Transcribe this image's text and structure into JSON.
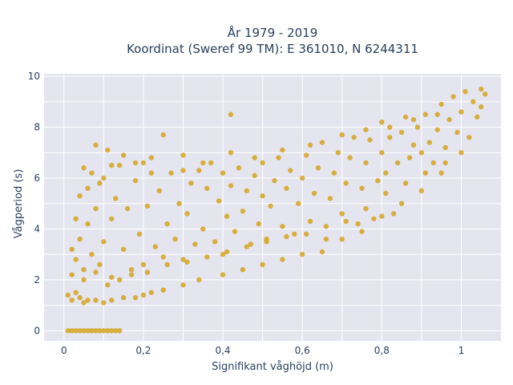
{
  "chart_data": {
    "type": "scatter",
    "title": "År 1979 - 2019",
    "subtitle": "Koordinat (Sweref 99 TM): E 361010, N 6244311",
    "xlabel": "Signifikant våghöjd (m)",
    "ylabel": "Vågperiod (s)",
    "xlim": [
      -0.05,
      1.1
    ],
    "ylim": [
      -0.4,
      10.1
    ],
    "x_ticks": [
      0,
      0.2,
      0.4,
      0.6,
      0.8,
      1
    ],
    "x_tick_labels": [
      "0",
      "0,2",
      "0,4",
      "0,6",
      "0,8",
      "1"
    ],
    "y_ticks": [
      0,
      2,
      4,
      6,
      8,
      10
    ],
    "y_tick_labels": [
      "0",
      "2",
      "4",
      "6",
      "8",
      "10"
    ],
    "grid": true,
    "marker_color": "#d4a520",
    "plot_background": "#e5e5f0",
    "series": [
      {
        "name": "",
        "points": [
          [
            0.01,
            0
          ],
          [
            0.02,
            0
          ],
          [
            0.03,
            0
          ],
          [
            0.04,
            0
          ],
          [
            0.05,
            0
          ],
          [
            0.06,
            0
          ],
          [
            0.07,
            0
          ],
          [
            0.08,
            0
          ],
          [
            0.09,
            0
          ],
          [
            0.1,
            0
          ],
          [
            0.11,
            0
          ],
          [
            0.12,
            0
          ],
          [
            0.13,
            0
          ],
          [
            0.14,
            0
          ],
          [
            0.01,
            1.4
          ],
          [
            0.02,
            1.2
          ],
          [
            0.03,
            1.5
          ],
          [
            0.04,
            1.3
          ],
          [
            0.05,
            1.1
          ],
          [
            0.06,
            1.2
          ],
          [
            0.08,
            1.2
          ],
          [
            0.1,
            1.1
          ],
          [
            0.12,
            1.2
          ],
          [
            0.15,
            1.3
          ],
          [
            0.18,
            1.3
          ],
          [
            0.2,
            1.4
          ],
          [
            0.22,
            1.5
          ],
          [
            0.25,
            1.6
          ],
          [
            0.3,
            1.8
          ],
          [
            0.34,
            2.0
          ],
          [
            0.4,
            2.2
          ],
          [
            0.45,
            2.4
          ],
          [
            0.5,
            2.6
          ],
          [
            0.55,
            2.8
          ],
          [
            0.6,
            3.0
          ],
          [
            0.65,
            3.1
          ],
          [
            0.7,
            3.6
          ],
          [
            0.75,
            3.9
          ],
          [
            0.8,
            4.5
          ],
          [
            0.85,
            5.0
          ],
          [
            0.9,
            5.5
          ],
          [
            0.95,
            6.2
          ],
          [
            1.0,
            7.0
          ],
          [
            1.05,
            8.8
          ],
          [
            0.02,
            2.2
          ],
          [
            0.02,
            3.2
          ],
          [
            0.03,
            4.4
          ],
          [
            0.03,
            2.8
          ],
          [
            0.04,
            5.3
          ],
          [
            0.04,
            3.6
          ],
          [
            0.05,
            6.4
          ],
          [
            0.05,
            2.4
          ],
          [
            0.06,
            4.2
          ],
          [
            0.06,
            5.6
          ],
          [
            0.07,
            3.0
          ],
          [
            0.07,
            6.2
          ],
          [
            0.08,
            7.3
          ],
          [
            0.08,
            4.8
          ],
          [
            0.09,
            2.6
          ],
          [
            0.09,
            5.8
          ],
          [
            0.1,
            3.5
          ],
          [
            0.1,
            6.0
          ],
          [
            0.11,
            7.1
          ],
          [
            0.12,
            4.4
          ],
          [
            0.12,
            2.1
          ],
          [
            0.13,
            5.2
          ],
          [
            0.14,
            6.5
          ],
          [
            0.15,
            3.2
          ],
          [
            0.15,
            6.9
          ],
          [
            0.16,
            4.8
          ],
          [
            0.17,
            2.4
          ],
          [
            0.18,
            5.9
          ],
          [
            0.19,
            3.8
          ],
          [
            0.2,
            6.6
          ],
          [
            0.2,
            2.6
          ],
          [
            0.21,
            4.9
          ],
          [
            0.22,
            6.8
          ],
          [
            0.23,
            3.3
          ],
          [
            0.24,
            5.5
          ],
          [
            0.25,
            7.7
          ],
          [
            0.25,
            2.9
          ],
          [
            0.26,
            4.2
          ],
          [
            0.27,
            6.2
          ],
          [
            0.28,
            3.6
          ],
          [
            0.29,
            5.0
          ],
          [
            0.3,
            6.9
          ],
          [
            0.3,
            2.8
          ],
          [
            0.31,
            4.6
          ],
          [
            0.32,
            5.8
          ],
          [
            0.33,
            3.4
          ],
          [
            0.34,
            6.3
          ],
          [
            0.35,
            4.0
          ],
          [
            0.36,
            5.6
          ],
          [
            0.37,
            6.6
          ],
          [
            0.38,
            3.5
          ],
          [
            0.39,
            5.1
          ],
          [
            0.4,
            6.2
          ],
          [
            0.4,
            3.0
          ],
          [
            0.41,
            4.5
          ],
          [
            0.42,
            8.5
          ],
          [
            0.42,
            5.7
          ],
          [
            0.43,
            3.9
          ],
          [
            0.44,
            6.4
          ],
          [
            0.45,
            4.7
          ],
          [
            0.46,
            5.5
          ],
          [
            0.47,
            3.4
          ],
          [
            0.48,
            6.1
          ],
          [
            0.49,
            4.2
          ],
          [
            0.5,
            5.3
          ],
          [
            0.5,
            6.6
          ],
          [
            0.51,
            3.6
          ],
          [
            0.52,
            4.9
          ],
          [
            0.53,
            5.9
          ],
          [
            0.54,
            6.8
          ],
          [
            0.55,
            4.1
          ],
          [
            0.56,
            5.6
          ],
          [
            0.57,
            6.3
          ],
          [
            0.58,
            3.8
          ],
          [
            0.59,
            5.0
          ],
          [
            0.6,
            6.0
          ],
          [
            0.61,
            6.9
          ],
          [
            0.62,
            4.3
          ],
          [
            0.63,
            5.4
          ],
          [
            0.64,
            6.4
          ],
          [
            0.65,
            7.4
          ],
          [
            0.66,
            3.6
          ],
          [
            0.67,
            5.2
          ],
          [
            0.68,
            6.2
          ],
          [
            0.69,
            7.0
          ],
          [
            0.7,
            4.6
          ],
          [
            0.71,
            5.8
          ],
          [
            0.72,
            6.8
          ],
          [
            0.73,
            7.6
          ],
          [
            0.74,
            4.2
          ],
          [
            0.75,
            5.6
          ],
          [
            0.76,
            6.6
          ],
          [
            0.77,
            7.5
          ],
          [
            0.78,
            4.4
          ],
          [
            0.79,
            5.9
          ],
          [
            0.8,
            7.0
          ],
          [
            0.8,
            8.2
          ],
          [
            0.81,
            6.2
          ],
          [
            0.82,
            7.6
          ],
          [
            0.83,
            4.6
          ],
          [
            0.84,
            6.6
          ],
          [
            0.85,
            7.8
          ],
          [
            0.86,
            8.4
          ],
          [
            0.87,
            6.8
          ],
          [
            0.88,
            7.3
          ],
          [
            0.89,
            8.0
          ],
          [
            0.9,
            7.0
          ],
          [
            0.91,
            8.5
          ],
          [
            0.92,
            7.4
          ],
          [
            0.93,
            6.6
          ],
          [
            0.94,
            7.9
          ],
          [
            0.95,
            8.9
          ],
          [
            0.96,
            7.2
          ],
          [
            0.97,
            8.3
          ],
          [
            0.98,
            9.2
          ],
          [
            0.99,
            7.8
          ],
          [
            1.0,
            8.6
          ],
          [
            1.01,
            9.4
          ],
          [
            1.02,
            7.6
          ],
          [
            1.03,
            9.0
          ],
          [
            1.04,
            8.4
          ],
          [
            1.05,
            9.5
          ],
          [
            1.06,
            9.3
          ],
          [
            0.12,
            6.5
          ],
          [
            0.18,
            6.6
          ],
          [
            0.22,
            6.2
          ],
          [
            0.3,
            6.3
          ],
          [
            0.35,
            6.6
          ],
          [
            0.42,
            7.0
          ],
          [
            0.48,
            6.8
          ],
          [
            0.55,
            7.1
          ],
          [
            0.62,
            7.3
          ],
          [
            0.7,
            7.7
          ],
          [
            0.76,
            7.9
          ],
          [
            0.82,
            8.0
          ],
          [
            0.88,
            8.3
          ],
          [
            0.94,
            8.5
          ],
          [
            0.05,
            2.0
          ],
          [
            0.08,
            2.3
          ],
          [
            0.11,
            1.8
          ],
          [
            0.14,
            2.0
          ],
          [
            0.17,
            2.2
          ],
          [
            0.21,
            2.3
          ],
          [
            0.26,
            2.6
          ],
          [
            0.31,
            2.7
          ],
          [
            0.36,
            2.9
          ],
          [
            0.41,
            3.1
          ],
          [
            0.46,
            3.3
          ],
          [
            0.51,
            3.5
          ],
          [
            0.56,
            3.7
          ],
          [
            0.61,
            3.8
          ],
          [
            0.66,
            4.1
          ],
          [
            0.71,
            4.3
          ],
          [
            0.76,
            4.8
          ],
          [
            0.81,
            5.4
          ],
          [
            0.86,
            5.8
          ],
          [
            0.91,
            6.2
          ],
          [
            0.96,
            6.6
          ]
        ]
      }
    ]
  }
}
